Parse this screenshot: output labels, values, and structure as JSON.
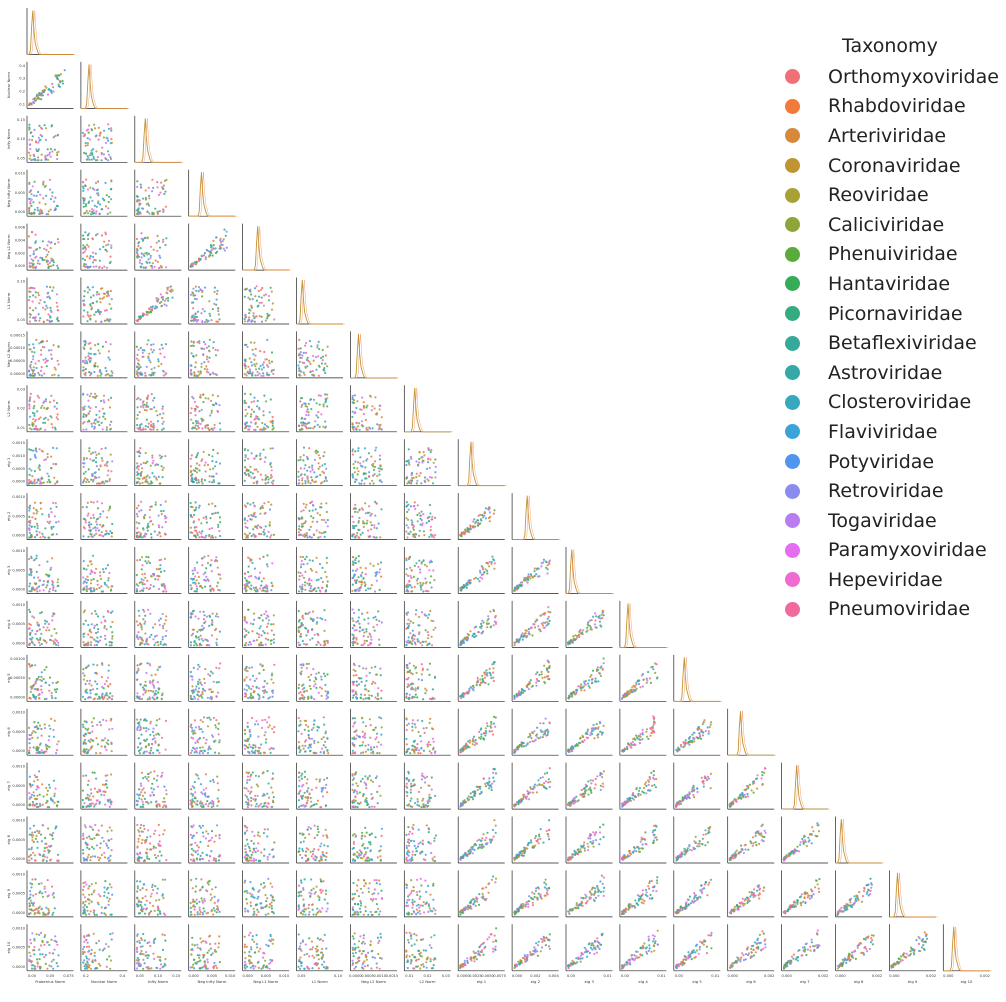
{
  "chart_data": {
    "type": "scatter",
    "kind": "pair plot (lower triangle) with diagonal kde",
    "variables": [
      "Frobenius Norm",
      "Nuclear Norm",
      "Infty Norm",
      "Neg Infty Norm",
      "Neg L1 Norm",
      "L1 Norm",
      "Neg L2 Norm",
      "L2 Norm",
      "eig 1",
      "eig 2",
      "eig 3",
      "eig 4",
      "eig 5",
      "eig 6",
      "eig 7",
      "eig 8",
      "eig 9",
      "eig 10"
    ],
    "x_ticks": {
      "Frobenius Norm": [
        "0.00",
        "0.05",
        "0.075"
      ],
      "Nuclear Norm": [
        "0.2",
        "0.4"
      ],
      "Infty Norm": [
        "0.05",
        "0.10",
        "0.15"
      ],
      "Neg Infty Norm": [
        "0.000",
        "0.005",
        "0.010"
      ],
      "Neg L1 Norm": [
        "0.000",
        "0.005",
        "0.010"
      ],
      "L1 Norm": [
        "0.05",
        "0.10"
      ],
      "Neg L2 Norm": [
        "0.0000",
        "0.0005",
        "0.0010",
        "0.0015"
      ],
      "L2 Norm": [
        "0.01",
        "0.02",
        "0.03"
      ],
      "eig 1": [
        "0.0000",
        "0.0025",
        "0.0050",
        "0.0075"
      ],
      "eig 2": [
        "0.000",
        "0.002",
        "0.004"
      ],
      "eig 3": [
        "0.00",
        "0.01"
      ],
      "eig 4": [
        "0.00",
        "0.01"
      ],
      "eig 5": [
        "0.00",
        "0.01"
      ],
      "eig 6": [
        "0.000",
        "0.002"
      ],
      "eig 7": [
        "0.000",
        "0.002"
      ],
      "eig 8": [
        "0.000",
        "0.002"
      ],
      "eig 9": [
        "0.000",
        "0.002"
      ],
      "eig 10": [
        "0.000",
        "0.002"
      ]
    },
    "y_ticks": {
      "Nuclear Norm": [
        "0.1",
        "0.2",
        "0.3",
        "0.4"
      ],
      "Infty Norm": [
        "0.05",
        "0.10",
        "0.15"
      ],
      "Neg Infty Norm": [
        "0.000",
        "0.005",
        "0.010"
      ],
      "Neg L1 Norm": [
        "0.000",
        "0.002",
        "0.004",
        "0.006"
      ],
      "L1 Norm": [
        "0.05",
        "0.10"
      ],
      "Neg L2 Norm": [
        "0.00000",
        "0.00005",
        "0.00010",
        "0.00015"
      ],
      "L2 Norm": [
        "0.01",
        "0.02",
        "0.03"
      ],
      "eig 1": [
        "0.0000",
        "0.0005",
        "0.0010",
        "0.0015"
      ],
      "eig 2": [
        "0.0000",
        "0.0005",
        "0.0010"
      ],
      "eig 3": [
        "0.0000",
        "0.0005",
        "0.0010"
      ],
      "eig 4": [
        "0.0000",
        "0.0005",
        "0.0010"
      ],
      "eig 5": [
        "0.00000",
        "0.00050",
        "0.00100"
      ],
      "eig 6": [
        "0.0000",
        "0.0005",
        "0.0010"
      ],
      "eig 7": [
        "0.0000",
        "0.0005",
        "0.0010"
      ],
      "eig 8": [
        "0.0000",
        "0.0005",
        "0.0010"
      ],
      "eig 9": [
        "0.0000",
        "0.0005",
        "0.0010"
      ],
      "eig 10": [
        "0.0000",
        "0.0005",
        "0.0010"
      ]
    },
    "legend": {
      "title": "Taxonomy",
      "placement": "right",
      "entries": [
        {
          "name": "Orthomyxoviridae",
          "color": "#f0707a"
        },
        {
          "name": "Rhabdoviridae",
          "color": "#f07a3a"
        },
        {
          "name": "Arteriviridae",
          "color": "#d6893a"
        },
        {
          "name": "Coronaviridae",
          "color": "#c19433"
        },
        {
          "name": "Reoviridae",
          "color": "#a9a038"
        },
        {
          "name": "Caliciviridae",
          "color": "#8ea53a"
        },
        {
          "name": "Phenuiviridae",
          "color": "#5aaa3c"
        },
        {
          "name": "Hantaviridae",
          "color": "#34ad56"
        },
        {
          "name": "Picornaviridae",
          "color": "#34ac82"
        },
        {
          "name": "Betaflexiviridae",
          "color": "#35a99a"
        },
        {
          "name": "Astroviridae",
          "color": "#36a8a8"
        },
        {
          "name": "Closteroviridae",
          "color": "#38a8bd"
        },
        {
          "name": "Flaviviridae",
          "color": "#3aa4d9"
        },
        {
          "name": "Potyviridae",
          "color": "#5096ee"
        },
        {
          "name": "Retroviridae",
          "color": "#8a8cf0"
        },
        {
          "name": "Togaviridae",
          "color": "#b87ef0"
        },
        {
          "name": "Paramyxoviridae",
          "color": "#e46ef0"
        },
        {
          "name": "Hepeviridae",
          "color": "#f06ad0"
        },
        {
          "name": "Pneumoviridae",
          "color": "#f06a9e"
        }
      ]
    }
  }
}
